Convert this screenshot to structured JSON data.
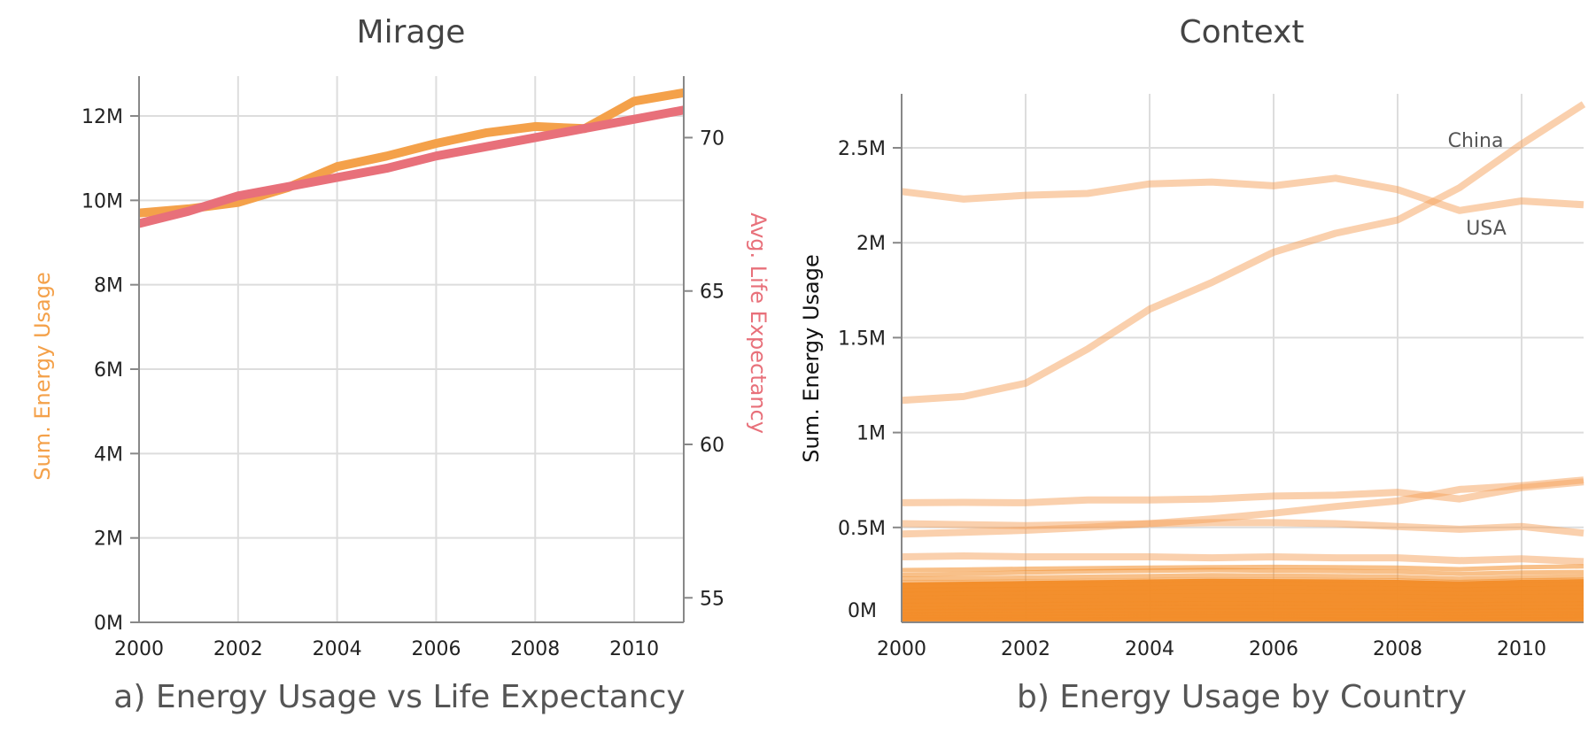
{
  "charts": {
    "mirage": {
      "title": "Mirage",
      "caption": "a) Energy Usage vs Life Expectancy"
    },
    "context": {
      "title": "Context",
      "caption": "b) Energy Usage by Country"
    }
  },
  "colors": {
    "energy": "#f4a14a",
    "life": "#e8707a",
    "country": "#f5a25b",
    "country_dense": "#f28c28"
  },
  "chart_data": [
    {
      "type": "line",
      "title": "Mirage",
      "caption": "a) Energy Usage vs Life Expectancy",
      "x": [
        2000,
        2001,
        2002,
        2003,
        2004,
        2005,
        2006,
        2007,
        2008,
        2009,
        2010,
        2011
      ],
      "x_ticks": [
        "2000",
        "2002",
        "2004",
        "2006",
        "2008",
        "2010"
      ],
      "xlim": [
        2000,
        2011
      ],
      "ylabel": "Sum. Energy Usage",
      "ylim": [
        0,
        12000000
      ],
      "y_ticks": [
        "0M",
        "2M",
        "4M",
        "6M",
        "8M",
        "10M",
        "12M"
      ],
      "y2label": "Avg. Life Expectancy",
      "y2lim": [
        54.2,
        71.6
      ],
      "y2_ticks": [
        "55",
        "60",
        "65",
        "70"
      ],
      "grid": true,
      "series": [
        {
          "axis": "left",
          "values": [
            9700000,
            9800000,
            9950000,
            10300000,
            10800000,
            11050000,
            11350000,
            11600000,
            11750000,
            11700000,
            12350000,
            12550000
          ]
        },
        {
          "axis": "right",
          "values": [
            67.2,
            67.6,
            68.1,
            68.4,
            68.7,
            69.0,
            69.4,
            69.7,
            70.0,
            70.3,
            70.6,
            70.9
          ]
        }
      ]
    },
    {
      "type": "line",
      "title": "Context",
      "caption": "b) Energy Usage by Country",
      "x": [
        2000,
        2001,
        2002,
        2003,
        2004,
        2005,
        2006,
        2007,
        2008,
        2009,
        2010,
        2011
      ],
      "x_ticks": [
        "2000",
        "2002",
        "2004",
        "2006",
        "2008",
        "2010"
      ],
      "xlim": [
        2000,
        2011
      ],
      "ylabel": "Sum. Energy Usage",
      "ylim": [
        0,
        2750000
      ],
      "y_ticks": [
        "0M",
        "0.5M",
        "1M",
        "1.5M",
        "2M",
        "2.5M"
      ],
      "grid": true,
      "series": [
        {
          "name": "China",
          "values": [
            1170000,
            1190000,
            1260000,
            1440000,
            1650000,
            1790000,
            1950000,
            2050000,
            2120000,
            2290000,
            2520000,
            2730000
          ]
        },
        {
          "name": "USA",
          "values": [
            2270000,
            2230000,
            2250000,
            2260000,
            2310000,
            2320000,
            2300000,
            2340000,
            2280000,
            2170000,
            2220000,
            2200000
          ]
        },
        {
          "values": [
            630000,
            632000,
            630000,
            645000,
            645000,
            650000,
            665000,
            670000,
            685000,
            650000,
            710000,
            740000
          ]
        },
        {
          "values": [
            465000,
            475000,
            485000,
            500000,
            520000,
            545000,
            575000,
            610000,
            640000,
            700000,
            720000,
            750000
          ]
        },
        {
          "values": [
            520000,
            515000,
            510000,
            515000,
            520000,
            525000,
            525000,
            520000,
            505000,
            490000,
            505000,
            470000
          ]
        },
        {
          "values": [
            345000,
            350000,
            345000,
            345000,
            345000,
            340000,
            345000,
            340000,
            340000,
            325000,
            335000,
            320000
          ]
        },
        {
          "values": [
            275000,
            278000,
            282000,
            285000,
            288000,
            290000,
            292000,
            290000,
            288000,
            280000,
            290000,
            295000
          ]
        },
        {
          "values": [
            250000,
            255000,
            262000,
            268000,
            272000,
            275000,
            272000,
            270000,
            266000,
            255000,
            262000,
            265000
          ]
        },
        {
          "values": [
            230000,
            232000,
            236000,
            240000,
            244000,
            248000,
            246000,
            244000,
            240000,
            230000,
            238000,
            242000
          ]
        },
        {
          "values": [
            210000,
            212000,
            215000,
            218000,
            222000,
            226000,
            224000,
            222000,
            220000,
            212000,
            220000,
            225000
          ]
        },
        {
          "values": [
            190000,
            192000,
            195000,
            198000,
            202000,
            205000,
            204000,
            202000,
            200000,
            192000,
            198000,
            202000
          ]
        },
        {
          "values": [
            170000,
            172000,
            175000,
            178000,
            181000,
            184000,
            183000,
            181000,
            179000,
            172000,
            178000,
            182000
          ]
        },
        {
          "values": [
            150000,
            152000,
            155000,
            158000,
            161000,
            163000,
            162000,
            161000,
            159000,
            153000,
            158000,
            161000
          ]
        },
        {
          "values": [
            130000,
            132000,
            134000,
            137000,
            140000,
            142000,
            141000,
            140000,
            138000,
            133000,
            137000,
            140000
          ]
        },
        {
          "values": [
            110000,
            112000,
            114000,
            116000,
            118000,
            120000,
            119000,
            118000,
            117000,
            113000,
            116000,
            118000
          ]
        },
        {
          "values": [
            92000,
            93000,
            95000,
            97000,
            99000,
            100000,
            99000,
            98000,
            97000,
            94000,
            97000,
            99000
          ]
        },
        {
          "values": [
            74000,
            75000,
            76000,
            78000,
            80000,
            81000,
            80000,
            79000,
            78000,
            76000,
            78000,
            80000
          ]
        },
        {
          "values": [
            58000,
            59000,
            60000,
            61000,
            62000,
            63000,
            62000,
            62000,
            61000,
            59000,
            61000,
            62000
          ]
        },
        {
          "values": [
            42000,
            43000,
            44000,
            45000,
            46000,
            47000,
            46000,
            46000,
            45000,
            44000,
            45000,
            46000
          ]
        },
        {
          "values": [
            28000,
            29000,
            29000,
            30000,
            31000,
            31000,
            31000,
            30000,
            30000,
            29000,
            30000,
            31000
          ]
        },
        {
          "values": [
            15000,
            15000,
            16000,
            16000,
            17000,
            17000,
            17000,
            16000,
            16000,
            16000,
            16000,
            17000
          ]
        }
      ],
      "annotations": [
        "China",
        "USA"
      ]
    }
  ]
}
